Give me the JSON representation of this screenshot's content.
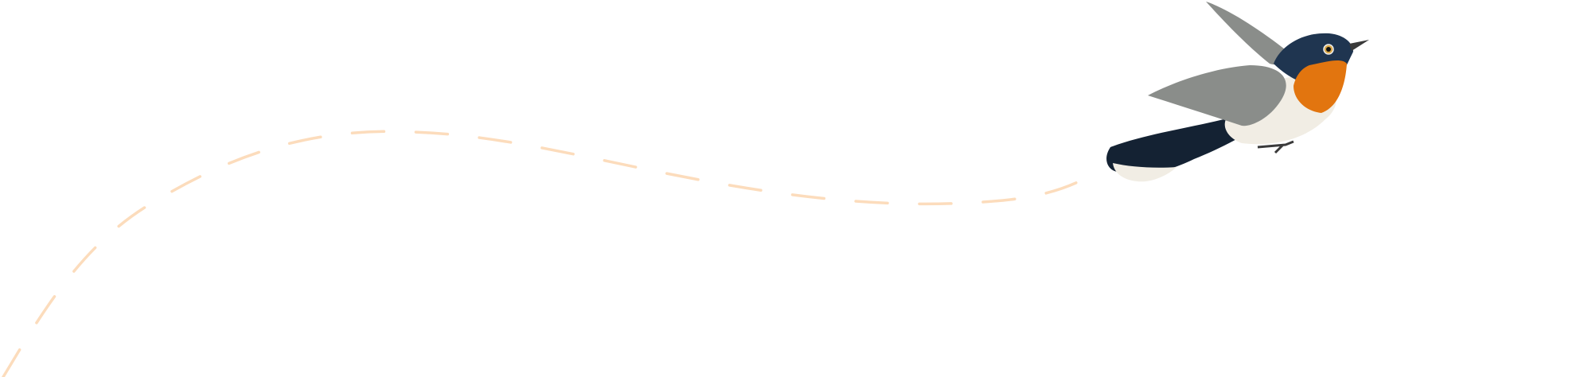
{
  "illustration": {
    "subject": "bird-icon",
    "colors": {
      "background": "#ffffff",
      "flight_path": "#fcdcbc",
      "throat": "#e2750f",
      "head": "#1f3550",
      "wing": "#8a8d8a",
      "belly": "#f1ede4",
      "tail": "#142233"
    }
  }
}
